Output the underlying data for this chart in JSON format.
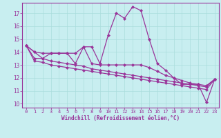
{
  "xlabel": "Windchill (Refroidissement éolien,°C)",
  "background_color": "#c8eef0",
  "grid_color": "#aadddd",
  "line_color": "#993399",
  "hours": [
    0,
    1,
    2,
    3,
    4,
    5,
    6,
    7,
    8,
    9,
    10,
    11,
    12,
    13,
    14,
    15,
    16,
    17,
    18,
    19,
    20,
    21,
    22,
    23
  ],
  "line1": [
    14.5,
    14.0,
    13.5,
    13.9,
    13.9,
    13.9,
    13.9,
    14.4,
    14.4,
    13.1,
    15.3,
    17.0,
    16.6,
    17.5,
    17.2,
    15.0,
    13.1,
    12.6,
    12.0,
    11.5,
    11.5,
    11.5,
    10.1,
    11.9
  ],
  "line2": [
    14.5,
    14.0,
    13.9,
    13.9,
    13.9,
    13.9,
    13.1,
    14.4,
    13.1,
    13.0,
    13.0,
    13.0,
    13.0,
    13.0,
    13.0,
    12.8,
    12.5,
    12.2,
    12.0,
    11.8,
    11.6,
    11.5,
    11.4,
    11.9
  ],
  "line3": [
    14.5,
    13.5,
    13.5,
    13.3,
    13.2,
    13.1,
    13.0,
    12.9,
    12.7,
    12.6,
    12.5,
    12.4,
    12.3,
    12.2,
    12.1,
    12.0,
    11.9,
    11.8,
    11.7,
    11.6,
    11.5,
    11.4,
    11.3,
    11.9
  ],
  "line4": [
    14.5,
    13.3,
    13.2,
    13.0,
    12.9,
    12.8,
    12.7,
    12.6,
    12.5,
    12.4,
    12.3,
    12.2,
    12.1,
    12.0,
    11.9,
    11.8,
    11.7,
    11.6,
    11.5,
    11.4,
    11.3,
    11.2,
    11.1,
    11.9
  ],
  "ylim_min": 9.7,
  "ylim_max": 17.8,
  "yticks": [
    10,
    11,
    12,
    13,
    14,
    15,
    16,
    17
  ],
  "xticks": [
    0,
    1,
    2,
    3,
    4,
    5,
    6,
    7,
    8,
    9,
    10,
    11,
    12,
    13,
    14,
    15,
    16,
    17,
    18,
    19,
    20,
    21,
    22,
    23
  ],
  "tick_fontsize": 5.0,
  "xlabel_fontsize": 5.5,
  "marker_size": 2.2,
  "line_width": 0.9
}
